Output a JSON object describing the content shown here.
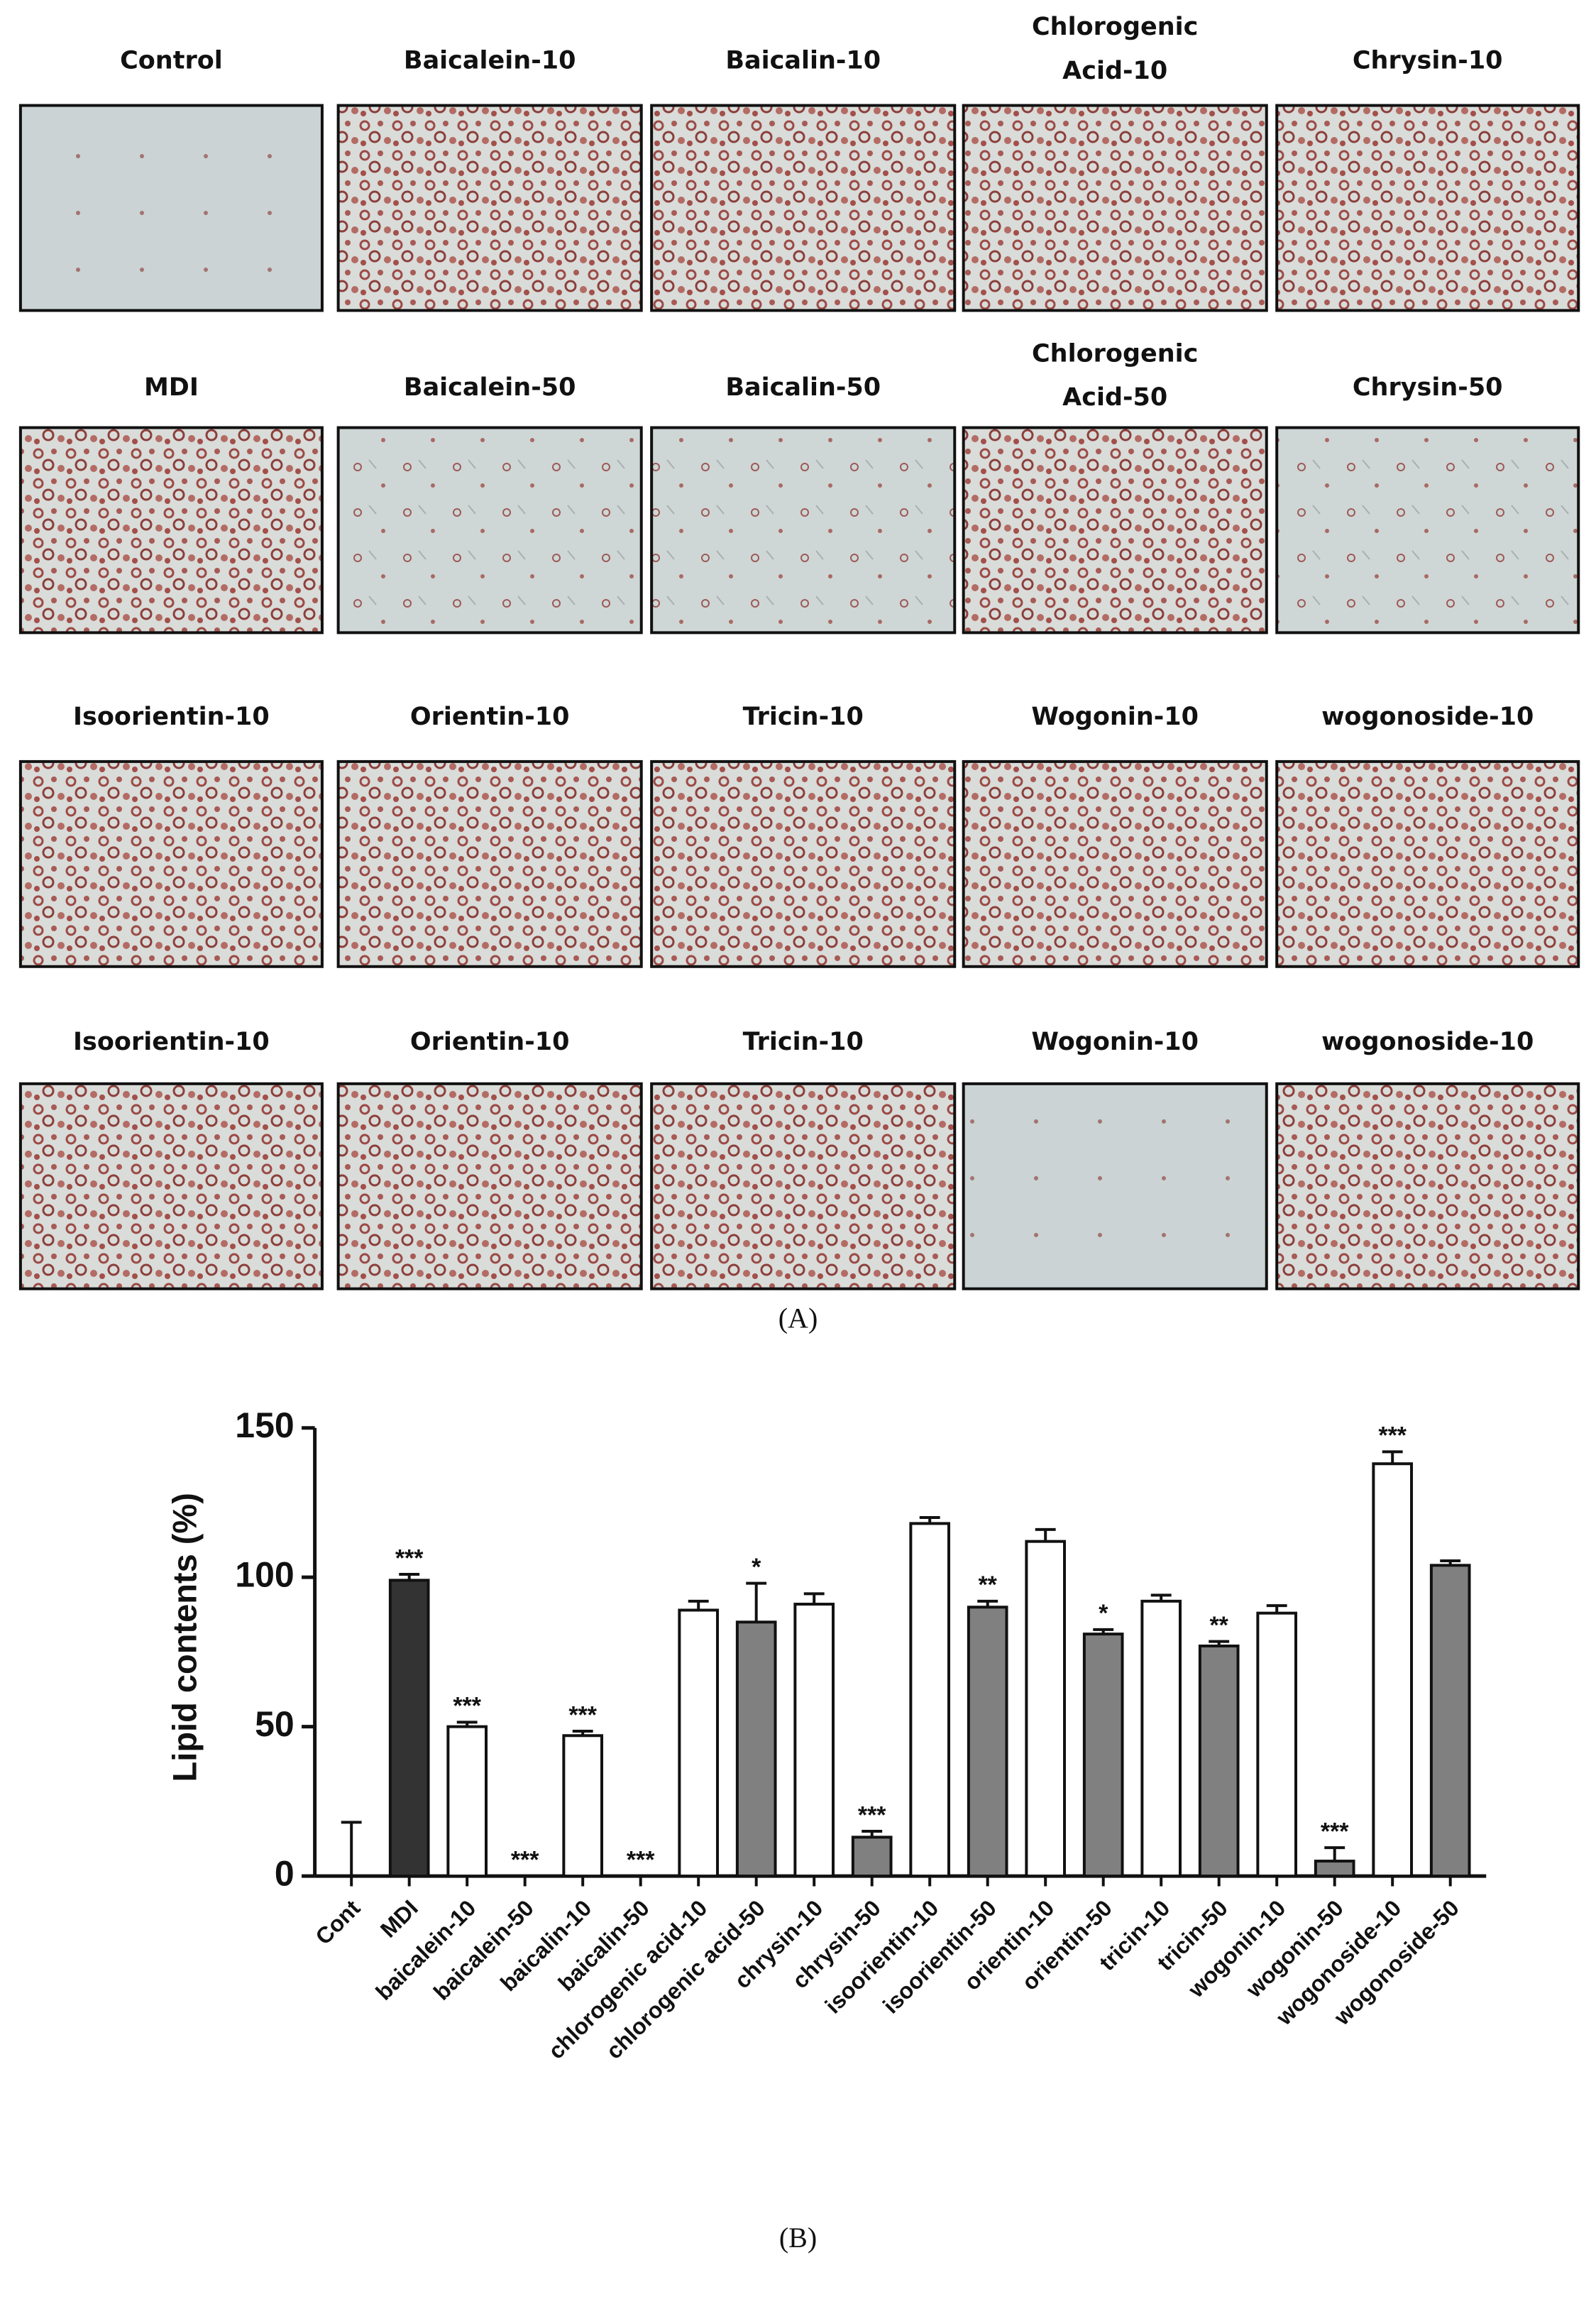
{
  "panel_a": {
    "rows": [
      [
        [
          "Control"
        ],
        [
          "Baicalein-10"
        ],
        [
          "Baicalin-10"
        ],
        [
          "Chlorogenic",
          "Acid-10"
        ],
        [
          "Chrysin-10"
        ]
      ],
      [
        [
          "MDI"
        ],
        [
          "Baicalein-50"
        ],
        [
          "Baicalin-50"
        ],
        [
          "Chlorogenic",
          "Acid-50"
        ],
        [
          "Chrysin-50"
        ]
      ],
      [
        [
          "Isoorientin-10"
        ],
        [
          "Orientin-10"
        ],
        [
          "Tricin-10"
        ],
        [
          "Wogonin-10"
        ],
        [
          "wogonoside-10"
        ]
      ],
      [
        [
          "Isoorientin-10"
        ],
        [
          "Orientin-10"
        ],
        [
          "Tricin-10"
        ],
        [
          "Wogonin-10"
        ],
        [
          "wogonoside-10"
        ]
      ]
    ],
    "label": "(A)"
  },
  "chart_data": {
    "type": "bar",
    "y_label": "Lipid contents (%)",
    "categories": [
      "Cont",
      "MDI",
      "baicalein-10",
      "baicalein-50",
      "baicalin-10",
      "baicalin-50",
      "chlorogenic acid-10",
      "chlorogenic acid-50",
      "chrysin-10",
      "chrysin-50",
      "isoorientin-10",
      "isoorientin-50",
      "orientin-10",
      "orientin-50",
      "tricin-10",
      "tricin-50",
      "wogonin-10",
      "wogonin-50",
      "wogonoside-10",
      "wogonoside-50"
    ],
    "values": [
      0,
      99,
      50,
      0,
      47,
      0,
      89,
      85,
      91,
      13,
      118,
      90,
      112,
      81,
      92,
      77,
      88,
      5,
      138,
      104
    ],
    "errors": [
      18,
      2,
      1.5,
      0,
      1.5,
      0,
      3,
      13,
      3.5,
      2,
      2,
      2,
      4,
      1.5,
      2,
      1.5,
      2.5,
      4.5,
      4,
      1.5
    ],
    "colors": [
      "#ffffff",
      "#333333",
      "#ffffff",
      "#808080",
      "#ffffff",
      "#808080",
      "#ffffff",
      "#808080",
      "#ffffff",
      "#808080",
      "#ffffff",
      "#808080",
      "#ffffff",
      "#808080",
      "#ffffff",
      "#808080",
      "#ffffff",
      "#808080",
      "#ffffff",
      "#808080"
    ],
    "annotations": [
      null,
      "***",
      "***",
      "***",
      "***",
      "***",
      null,
      "*",
      null,
      "***",
      null,
      "**",
      null,
      "*",
      null,
      "**",
      null,
      "***",
      "***",
      null
    ],
    "ylim": [
      0,
      150
    ],
    "yticks": [
      0,
      50,
      100,
      150
    ],
    "label": "(B)"
  }
}
